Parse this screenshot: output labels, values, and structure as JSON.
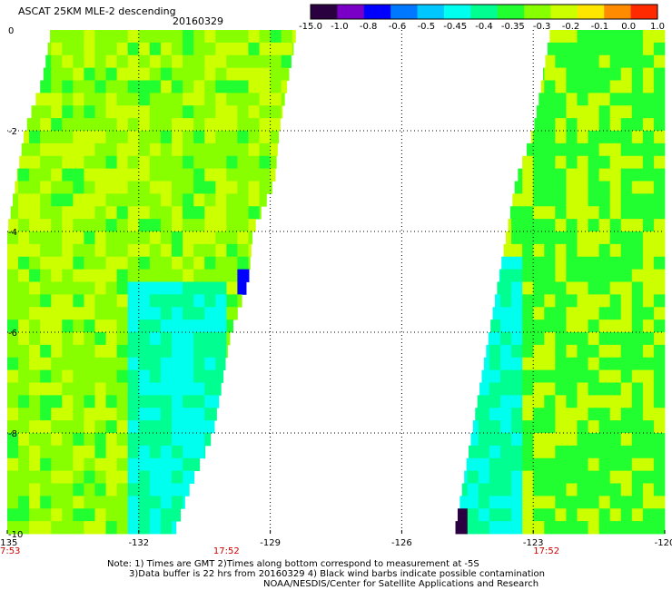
{
  "header": {
    "title": "ASCAT 25KM MLE-2 descending",
    "date": "20160329"
  },
  "colorbar": {
    "labels": [
      "-15.0",
      "-1.0",
      "-0.8",
      "-0.6",
      "-0.5",
      "-0.45",
      "-0.4",
      "-0.35",
      "-0.3",
      "-0.2",
      "-0.1",
      "0.0",
      "1.0"
    ],
    "colors": [
      "#2b0040",
      "#7a00c8",
      "#0000ff",
      "#0078ff",
      "#00c8ff",
      "#00ffee",
      "#00ff90",
      "#22ff30",
      "#88ff00",
      "#ccff00",
      "#ffe600",
      "#ff8c00",
      "#ff2a00"
    ]
  },
  "notes": {
    "line1": "Note: 1) Times are GMT 2)Times along bottom correspond to measurement at -5S",
    "line2": "3)Data buffer is 22 hrs from 20160329 4) Black wind barbs indicate possible contamination",
    "line3": "NOAA/NESDIS/Center for Satellite Applications and Research"
  },
  "chart_data": {
    "type": "heatmap",
    "title": "ASCAT 25KM MLE-2 descending",
    "subtitle": "20160329",
    "xlim": [
      -135,
      -120
    ],
    "ylim": [
      -10,
      0
    ],
    "x_ticks": [
      "-135",
      "-132",
      "-129",
      "-126",
      "-123",
      "-120"
    ],
    "y_ticks": [
      "0",
      "-2",
      "-4",
      "-6",
      "-8",
      "-10"
    ],
    "time_labels": [
      {
        "x": -135,
        "label": "17:53"
      },
      {
        "x": -130,
        "label": "17:52"
      },
      {
        "x": -122.7,
        "label": "17:52"
      }
    ],
    "grid": true,
    "value_range": [
      -15.0,
      1.0
    ],
    "swaths": [
      {
        "name": "west",
        "rows": [
          {
            "lat": 0.0,
            "lon_min": -134.0,
            "lon_max": -128.4
          },
          {
            "lat": -1.0,
            "lon_min": -134.2,
            "lon_max": -128.6
          },
          {
            "lat": -2.0,
            "lon_min": -134.6,
            "lon_max": -128.8
          },
          {
            "lat": -3.0,
            "lon_min": -134.8,
            "lon_max": -128.9
          },
          {
            "lat": -4.0,
            "lon_min": -135.0,
            "lon_max": -129.4
          },
          {
            "lat": -5.0,
            "lon_min": -135.0,
            "lon_max": -129.5
          },
          {
            "lat": -6.0,
            "lon_min": -135.0,
            "lon_max": -129.9
          },
          {
            "lat": -7.0,
            "lon_min": -135.0,
            "lon_max": -130.1
          },
          {
            "lat": -8.0,
            "lon_min": -135.0,
            "lon_max": -130.3
          },
          {
            "lat": -9.0,
            "lon_min": -135.0,
            "lon_max": -130.8
          },
          {
            "lat": -10.0,
            "lon_min": -135.0,
            "lon_max": -131.2
          }
        ],
        "dominant_value": -0.3,
        "low_region": {
          "lat_range": [
            -10,
            -5
          ],
          "lon_range": [
            -132.2,
            -129.9
          ],
          "value": -0.45
        },
        "min_pixel": {
          "lat": -5.0,
          "lon": -129.4,
          "value": -0.8
        }
      },
      {
        "name": "east",
        "rows": [
          {
            "lat": 0.0,
            "lon_min": -122.6,
            "lon_max": -120.0
          },
          {
            "lat": -1.0,
            "lon_min": -122.8,
            "lon_max": -120.0
          },
          {
            "lat": -2.0,
            "lon_min": -123.0,
            "lon_max": -120.0
          },
          {
            "lat": -3.0,
            "lon_min": -123.4,
            "lon_max": -120.0
          },
          {
            "lat": -4.0,
            "lon_min": -123.6,
            "lon_max": -120.0
          },
          {
            "lat": -5.0,
            "lon_min": -123.8,
            "lon_max": -120.0
          },
          {
            "lat": -6.0,
            "lon_min": -124.0,
            "lon_max": -120.0
          },
          {
            "lat": -7.0,
            "lon_min": -124.2,
            "lon_max": -120.0
          },
          {
            "lat": -8.0,
            "lon_min": -124.4,
            "lon_max": -120.0
          },
          {
            "lat": -9.0,
            "lon_min": -124.6,
            "lon_max": -120.0
          },
          {
            "lat": -10.0,
            "lon_min": -124.8,
            "lon_max": -120.0
          }
        ],
        "dominant_value": -0.35,
        "low_region": {
          "lat_range": [
            -10,
            -4.5
          ],
          "lon_range": [
            -124.8,
            -123.3
          ],
          "value": -0.45
        },
        "min_pixel": {
          "lat": -9.7,
          "lon": -124.7,
          "value": -15.0
        }
      }
    ]
  }
}
